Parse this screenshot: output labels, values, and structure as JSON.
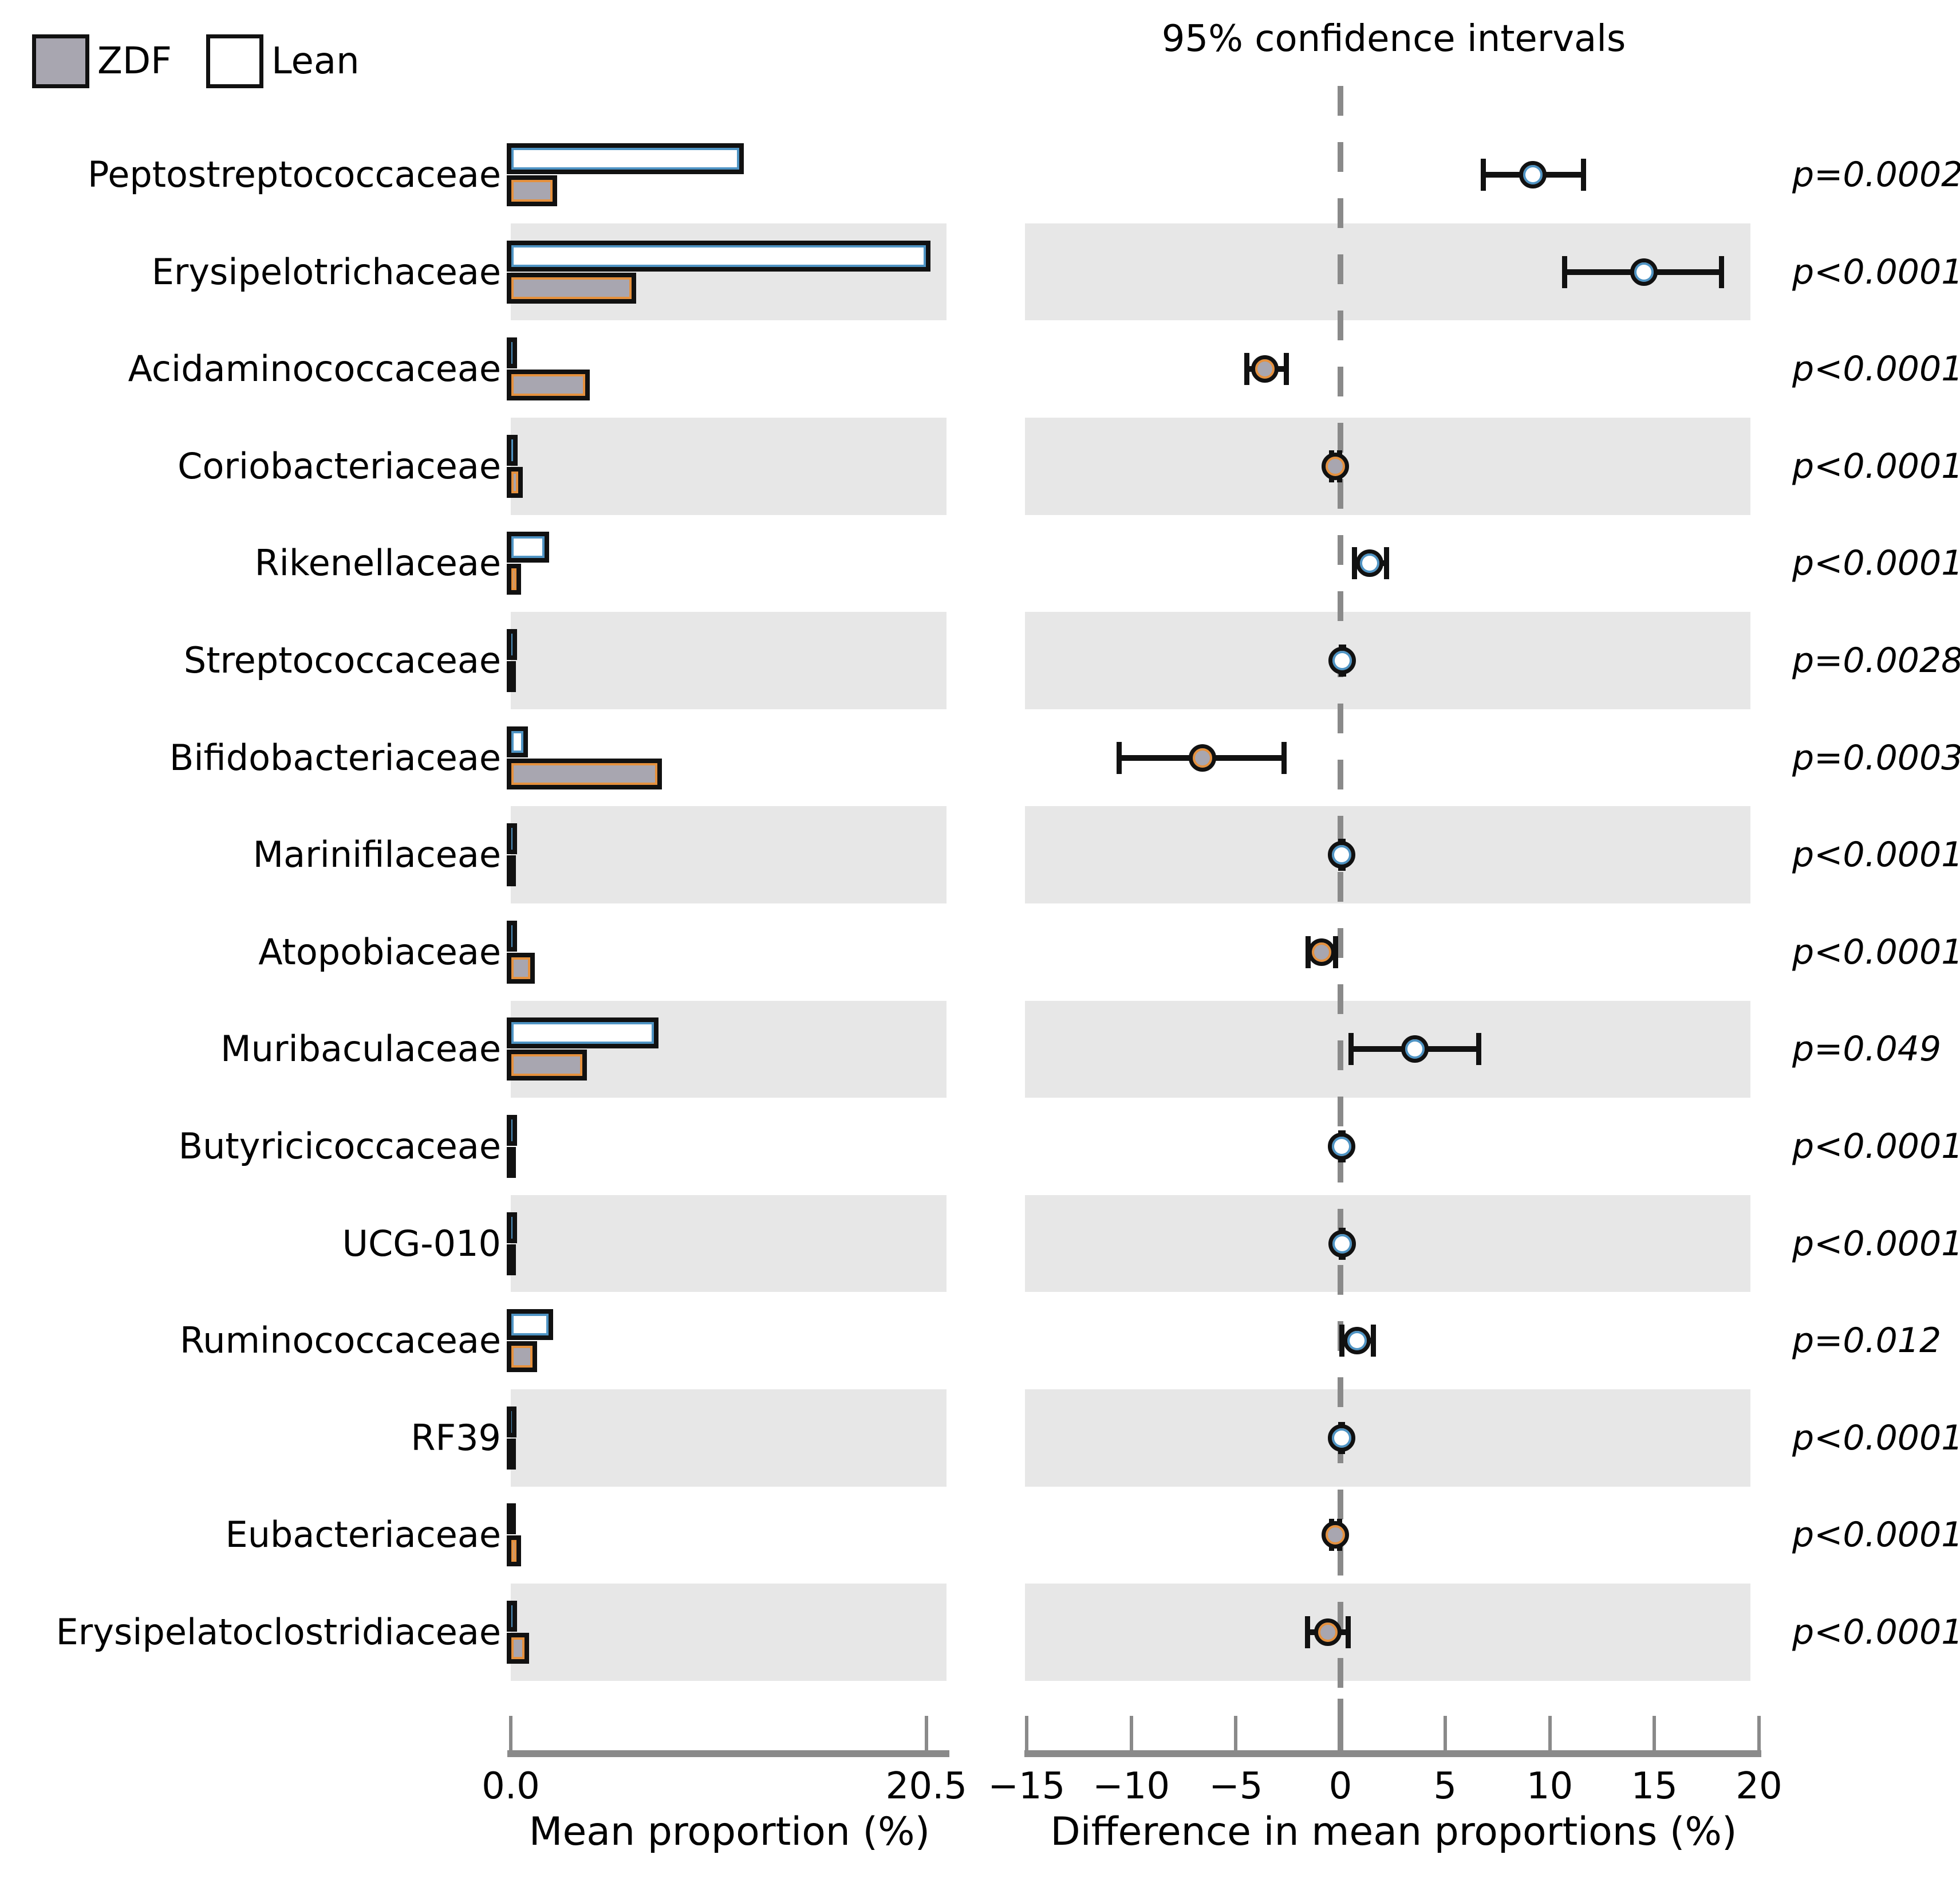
{
  "title": "95% confidence intervals",
  "legend": {
    "zdf_label": "ZDF",
    "lean_label": "Lean"
  },
  "left_axis": {
    "label": "Mean proportion (%)",
    "tick_labels": [
      "0.0",
      "20.5"
    ]
  },
  "right_axis": {
    "label": "Difference in mean proportions (%)",
    "tick_labels": [
      "−15",
      "−10",
      "−5",
      "0",
      "5",
      "10",
      "15",
      "20"
    ]
  },
  "chart_data": {
    "type": "extended_error_bar",
    "title": "95% confidence intervals",
    "categories": [
      "Peptostreptococcaceae",
      "Erysipelotrichaceae",
      "Acidaminococcaceae",
      "Coriobacteriaceae",
      "Rikenellaceae",
      "Streptococcaceae",
      "Bifidobacteriaceae",
      "Marinifilaceae",
      "Atopobiaceae",
      "Muribaculaceae",
      "Butyricicoccaceae",
      "UCG-010",
      "Ruminococcaceae",
      "RF39",
      "Eubacteriaceae",
      "Erysipelatoclostridiaceae"
    ],
    "series": [
      {
        "name": "ZDF",
        "fill": "#a8a6b0",
        "edge": "#e5913e",
        "values": [
          2.1,
          6.0,
          3.7,
          0.4,
          0.3,
          0.04,
          7.25,
          0.05,
          1.0,
          3.55,
          0.05,
          0.03,
          1.1,
          0.03,
          0.3,
          0.7
        ]
      },
      {
        "name": "Lean",
        "fill": "#ffffff",
        "edge": "#4f94c4",
        "values": [
          11.3,
          20.5,
          0.1,
          0.15,
          1.7,
          0.12,
          0.65,
          0.1,
          0.1,
          7.1,
          0.1,
          0.1,
          1.9,
          0.08,
          0.05,
          0.1
        ]
      }
    ],
    "left_panel": {
      "xlabel": "Mean proportion (%)",
      "xlim": [
        0,
        21.6
      ],
      "ticks": [
        0,
        20.5
      ],
      "tick_labels": [
        "0.0",
        "20.5"
      ]
    },
    "right_panel": {
      "xlabel": "Difference in mean proportions (%)",
      "xlim": [
        -15.1,
        20.2
      ],
      "ticks": [
        -15,
        -10,
        -5,
        0,
        5,
        10,
        15,
        20
      ],
      "tick_labels": [
        "−15",
        "−10",
        "−5",
        "0",
        "5",
        "10",
        "15",
        "20"
      ],
      "zero_line_dashed": true
    },
    "differences": [
      {
        "category": "Peptostreptococcaceae",
        "diff": 9.2,
        "ci_low": 6.8,
        "ci_high": 11.6,
        "enriched": "Lean",
        "p_label": "p=0.0002"
      },
      {
        "category": "Erysipelotrichaceae",
        "diff": 14.5,
        "ci_low": 10.7,
        "ci_high": 18.2,
        "enriched": "Lean",
        "p_label": "p<0.0001"
      },
      {
        "category": "Acidaminococcaceae",
        "diff": -3.6,
        "ci_low": -4.5,
        "ci_high": -2.6,
        "enriched": "ZDF",
        "p_label": "p<0.0001"
      },
      {
        "category": "Coriobacteriaceae",
        "diff": -0.25,
        "ci_low": -0.45,
        "ci_high": -0.05,
        "enriched": "ZDF",
        "p_label": "p<0.0001"
      },
      {
        "category": "Rikenellaceae",
        "diff": 1.4,
        "ci_low": 0.65,
        "ci_high": 2.2,
        "enriched": "Lean",
        "p_label": "p<0.0001"
      },
      {
        "category": "Streptococcaceae",
        "diff": 0.08,
        "ci_low": 0.02,
        "ci_high": 0.15,
        "enriched": "Lean",
        "p_label": "p=0.0028"
      },
      {
        "category": "Bifidobacteriaceae",
        "diff": -6.6,
        "ci_low": -10.6,
        "ci_high": -2.7,
        "enriched": "ZDF",
        "p_label": "p=0.0003"
      },
      {
        "category": "Marinifilaceae",
        "diff": 0.05,
        "ci_low": 0.01,
        "ci_high": 0.1,
        "enriched": "Lean",
        "p_label": "p<0.0001"
      },
      {
        "category": "Atopobiaceae",
        "diff": -0.9,
        "ci_low": -1.55,
        "ci_high": -0.25,
        "enriched": "ZDF",
        "p_label": "p<0.0001"
      },
      {
        "category": "Muribaculaceae",
        "diff": 3.55,
        "ci_low": 0.5,
        "ci_high": 6.6,
        "enriched": "Lean",
        "p_label": "p=0.049"
      },
      {
        "category": "Butyricicoccaceae",
        "diff": 0.05,
        "ci_low": 0.01,
        "ci_high": 0.1,
        "enriched": "Lean",
        "p_label": "p<0.0001"
      },
      {
        "category": "UCG-010",
        "diff": 0.07,
        "ci_low": 0.02,
        "ci_high": 0.12,
        "enriched": "Lean",
        "p_label": "p<0.0001"
      },
      {
        "category": "Ruminococcaceae",
        "diff": 0.8,
        "ci_low": 0.05,
        "ci_high": 1.55,
        "enriched": "Lean",
        "p_label": "p=0.012"
      },
      {
        "category": "RF39",
        "diff": 0.05,
        "ci_low": 0.01,
        "ci_high": 0.09,
        "enriched": "Lean",
        "p_label": "p<0.0001"
      },
      {
        "category": "Eubacteriaceae",
        "diff": -0.25,
        "ci_low": -0.45,
        "ci_high": -0.05,
        "enriched": "ZDF",
        "p_label": "p<0.0001"
      },
      {
        "category": "Erysipelatoclostridiaceae",
        "diff": -0.6,
        "ci_low": -1.6,
        "ci_high": 0.35,
        "enriched": "ZDF",
        "p_label": "p<0.0001"
      }
    ],
    "colors": {
      "band": "#e7e7e7",
      "axis": "#8a8a8a",
      "outline": "#111111",
      "zdf_fill": "#a8a6b0",
      "zdf_edge": "#e5913e",
      "lean_fill": "#ffffff",
      "lean_edge": "#4f94c4",
      "text": "#000000"
    },
    "legend_position": "top-left",
    "grid": false
  }
}
